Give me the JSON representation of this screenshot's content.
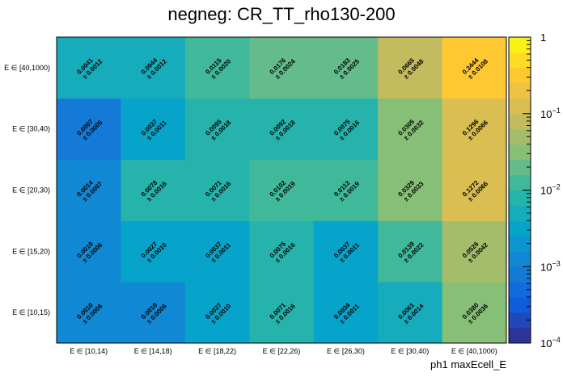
{
  "chart_data": {
    "type": "heatmap",
    "title": "negneg: CR_TT_rho130-200",
    "xlabel": "ph1 maxEcell_E",
    "ylabel": "",
    "x_categories": [
      "E ∈ [10,14)",
      "E ∈ [14,18)",
      "E ∈ [18,22)",
      "E ∈ [22,26)",
      "E ∈ [26,30)",
      "E ∈ [30,40)",
      "E ∈ [40,1000)"
    ],
    "y_categories": [
      "E ∈ [10,15)",
      "E ∈ [15,20)",
      "E ∈ [20,30)",
      "E ∈ [30,40)",
      "E ∈ [40,1000)"
    ],
    "values": [
      [
        0.001,
        0.001,
        0.0027,
        0.0071,
        0.0034,
        0.0061,
        0.038
      ],
      [
        0.001,
        0.0027,
        0.0037,
        0.0075,
        0.0037,
        0.0139,
        0.0526
      ],
      [
        0.0014,
        0.0078,
        0.0071,
        0.0102,
        0.0112,
        0.0329,
        0.1272
      ],
      [
        0.0007,
        0.0037,
        0.0095,
        0.0092,
        0.0075,
        0.0305,
        0.1296
      ],
      [
        0.0041,
        0.0044,
        0.0115,
        0.0176,
        0.0183,
        0.0665,
        0.3444
      ]
    ],
    "errors": [
      [
        0.0006,
        0.0006,
        0.001,
        0.0016,
        0.0011,
        0.0014,
        0.0036
      ],
      [
        0.0006,
        0.001,
        0.0011,
        0.0016,
        0.0011,
        0.0022,
        0.0042
      ],
      [
        0.0007,
        0.0016,
        0.0016,
        0.0019,
        0.0019,
        0.0033,
        0.0066
      ],
      [
        0.0005,
        0.0011,
        0.0018,
        0.0018,
        0.0016,
        0.0032,
        0.0066
      ],
      [
        0.0012,
        0.0012,
        0.002,
        0.0024,
        0.0025,
        0.0048,
        0.0108
      ]
    ],
    "value_labels": [
      [
        "0.0010",
        "0.0010",
        "0.0027",
        "0.0071",
        "0.0034",
        "0.0061",
        "0.0380"
      ],
      [
        "0.0010",
        "0.0027",
        "0.0037",
        "0.0075",
        "0.0037",
        "0.0139",
        "0.0526"
      ],
      [
        "0.0014",
        "0.0078",
        "0.0071",
        "0.0102",
        "0.0112",
        "0.0329",
        "0.1272"
      ],
      [
        "0.0007",
        "0.0037",
        "0.0095",
        "0.0092",
        "0.0075",
        "0.0305",
        "0.1296"
      ],
      [
        "0.0041",
        "0.0044",
        "0.0115",
        "0.0176",
        "0.0183",
        "0.0665",
        "0.3444"
      ]
    ],
    "error_labels": [
      [
        "± 0.0006",
        "± 0.0006",
        "± 0.0010",
        "± 0.0016",
        "± 0.0011",
        "± 0.0014",
        "± 0.0036"
      ],
      [
        "± 0.0006",
        "± 0.0010",
        "± 0.0011",
        "± 0.0016",
        "± 0.0011",
        "± 0.0022",
        "± 0.0042"
      ],
      [
        "± 0.0007",
        "± 0.0016",
        "± 0.0016",
        "± 0.0019",
        "± 0.0019",
        "± 0.0033",
        "± 0.0066"
      ],
      [
        "± 0.0005",
        "± 0.0011",
        "± 0.0018",
        "± 0.0018",
        "± 0.0016",
        "± 0.0032",
        "± 0.0066"
      ],
      [
        "± 0.0012",
        "± 0.0012",
        "± 0.0020",
        "± 0.0024",
        "± 0.0025",
        "± 0.0048",
        "± 0.0108"
      ]
    ],
    "zlim": [
      0.0001,
      1
    ],
    "z_scale": "log",
    "colorbar": {
      "ticks": [
        {
          "value": 1,
          "label": "1"
        },
        {
          "value": 0.1,
          "label": "10",
          "exp": "−1"
        },
        {
          "value": 0.01,
          "label": "10",
          "exp": "−2"
        },
        {
          "value": 0.001,
          "label": "10",
          "exp": "−3"
        },
        {
          "value": 0.0001,
          "label": "10",
          "exp": "−4"
        }
      ]
    },
    "palette": [
      "#352a87",
      "#0f5cdd",
      "#1481d6",
      "#06a4ca",
      "#2eb7a4",
      "#87bf77",
      "#d1bb59",
      "#fec832",
      "#f9fb0e"
    ],
    "grid": false,
    "legend": "none"
  }
}
